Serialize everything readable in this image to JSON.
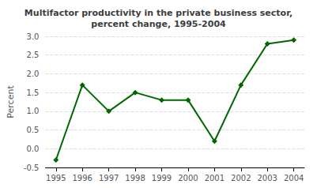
{
  "chart_data": {
    "type": "line",
    "title": "Multifactor productivity in the private business sector,\npercent change, 1995-2004",
    "x": [
      1995,
      1996,
      1997,
      1998,
      1999,
      2000,
      2001,
      2002,
      2003,
      2004
    ],
    "values": [
      -0.3,
      1.7,
      1.0,
      1.5,
      1.3,
      1.3,
      0.2,
      1.7,
      2.8,
      2.9
    ],
    "color": "#006600",
    "marker": "diamond",
    "ylabel": "Percent",
    "xlim": [
      1994.6,
      2004.4
    ],
    "xticks": [
      1995,
      1996,
      1997,
      1998,
      1999,
      2000,
      2001,
      2002,
      2003,
      2004
    ],
    "ylim": [
      -0.5,
      3.0
    ],
    "yticks": [
      -0.5,
      {
        "value": 0,
        "label": "0.0"
      },
      0.5,
      {
        "value": 1,
        "label": "1.0"
      },
      1.5,
      {
        "value": 2,
        "label": "2.0"
      },
      2.5,
      {
        "value": 3,
        "label": "3.0"
      }
    ],
    "grid": true
  }
}
